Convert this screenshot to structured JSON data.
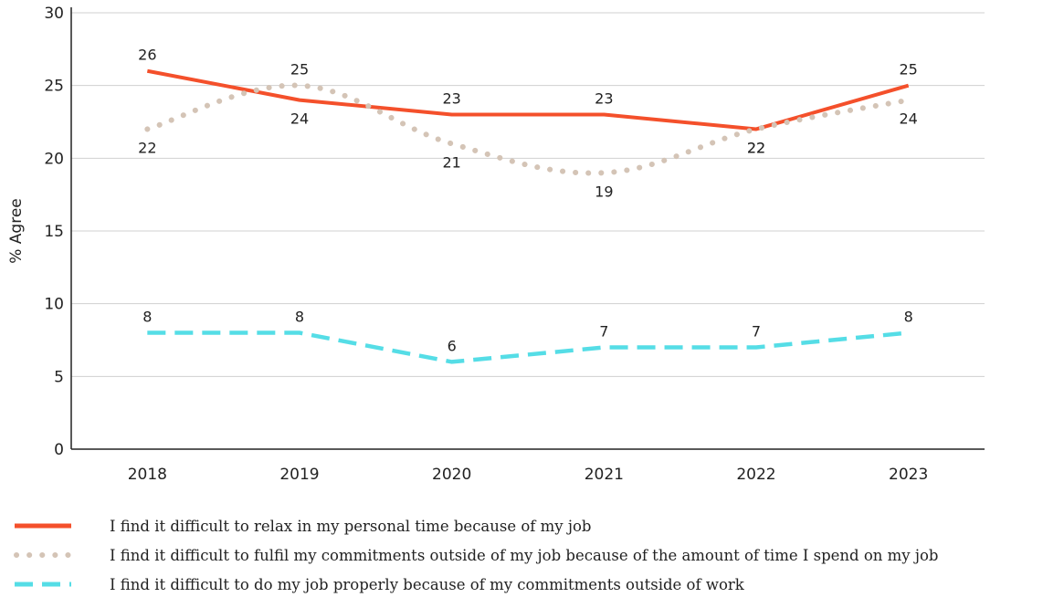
{
  "chart_data": {
    "type": "line",
    "ylabel": "% Agree",
    "xlabel": "",
    "categories": [
      "2018",
      "2019",
      "2020",
      "2021",
      "2022",
      "2023"
    ],
    "ylim": [
      0,
      30
    ],
    "yticks": [
      0,
      5,
      10,
      15,
      20,
      25,
      30
    ],
    "grid": "horizontal",
    "legend_position": "bottom",
    "series": [
      {
        "name": "I find it difficult to relax in my personal time because of my job",
        "values": [
          26,
          24,
          23,
          23,
          22,
          25
        ],
        "color": "#f4502b",
        "style": "solid",
        "label_position": [
          "above",
          "below",
          "above",
          "above",
          "below",
          "above"
        ]
      },
      {
        "name": "I find it difficult to fulfil my commitments outside of my job because of the amount of time I spend on my job",
        "values": [
          22,
          25,
          21,
          19,
          22,
          24
        ],
        "color": "#d4c4b6",
        "style": "dotted",
        "label_position": [
          "below",
          "above",
          "below",
          "below",
          "below",
          "below"
        ]
      },
      {
        "name": "I find it difficult to do my job properly because of my commitments outside of work",
        "values": [
          8,
          8,
          6,
          7,
          7,
          8
        ],
        "color": "#55dde6",
        "style": "dashed",
        "label_position": [
          "above",
          "above",
          "above",
          "above",
          "above",
          "above"
        ]
      }
    ]
  }
}
